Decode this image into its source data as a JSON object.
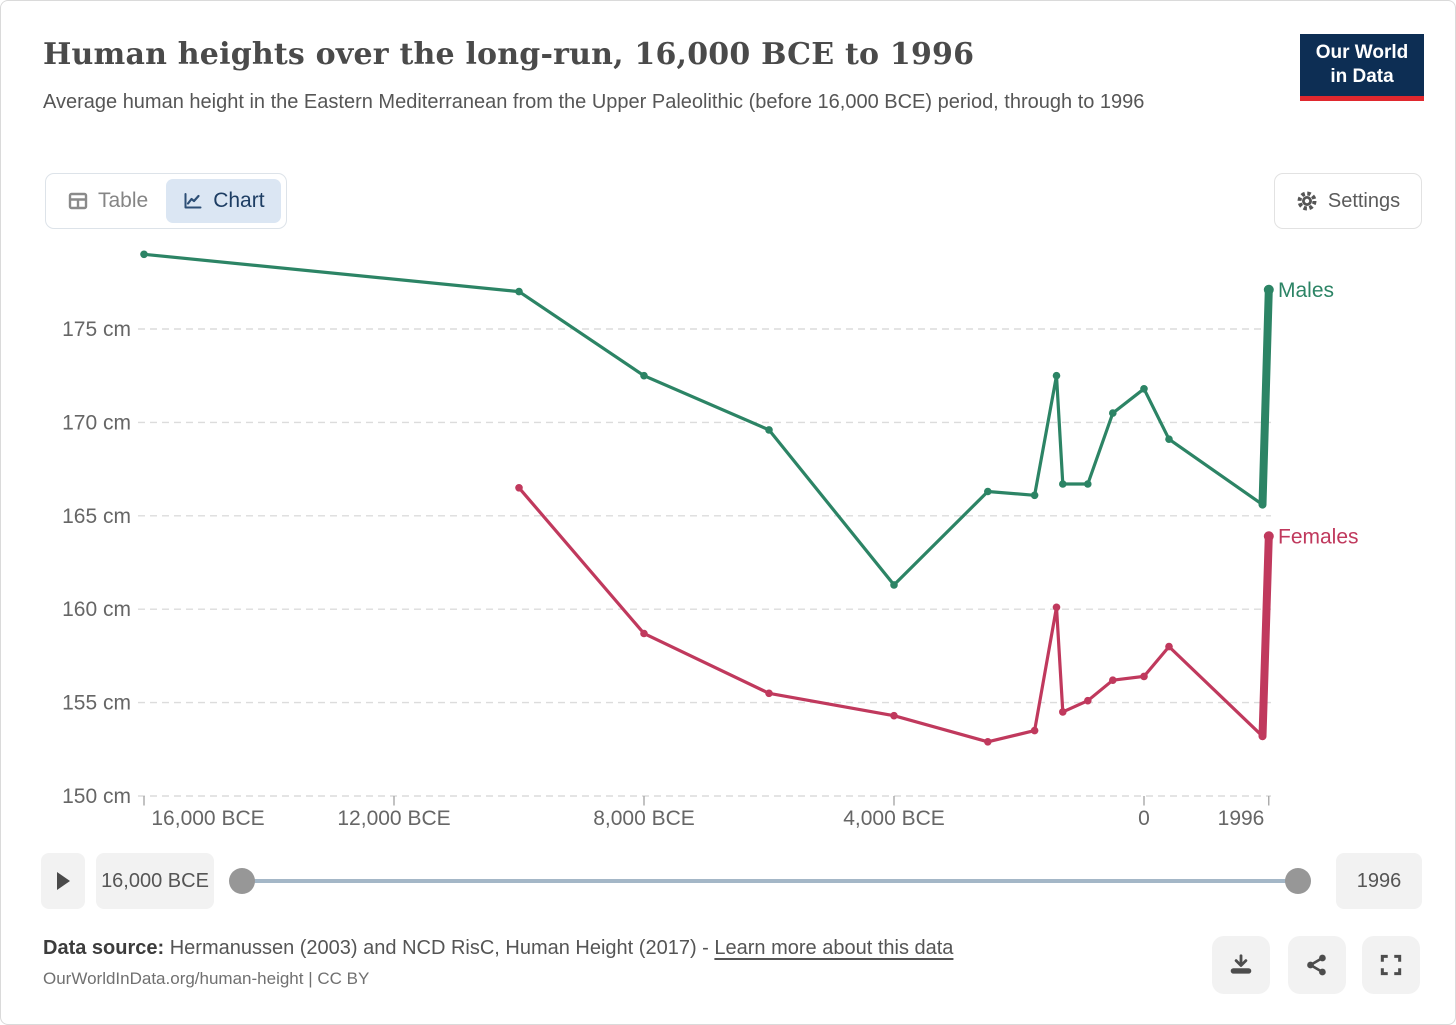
{
  "header": {
    "title": "Human heights over the long-run, 16,000 BCE to 1996",
    "subtitle": "Average human height in the Eastern Mediterranean from the Upper Paleolithic (before 16,000 BCE) period, through to 1996",
    "logo": {
      "line1": "Our World",
      "line2": "in Data"
    }
  },
  "tabs": [
    {
      "label": "Table",
      "active": false
    },
    {
      "label": "Chart",
      "active": true
    }
  ],
  "settings_button": {
    "label": "Settings"
  },
  "chart_data": {
    "type": "line",
    "title": "Human heights over the long-run, 16,000 BCE to 1996",
    "unit": "cm",
    "ylabel": "",
    "xlabel": "",
    "grid": true,
    "ylim": [
      150,
      180
    ],
    "yticks": [
      150,
      155,
      160,
      165,
      170,
      175
    ],
    "ytick_suffix": " cm",
    "xticks": [
      {
        "year": -16000,
        "label": "16,000 BCE"
      },
      {
        "year": -12000,
        "label": "12,000 BCE"
      },
      {
        "year": -8000,
        "label": "8,000 BCE"
      },
      {
        "year": -4000,
        "label": "4,000 BCE"
      },
      {
        "year": 0,
        "label": "0"
      },
      {
        "year": 1996,
        "label": "1996"
      }
    ],
    "legend_position": "right-of-line-end",
    "dense_segment_start_year": 1896,
    "series": [
      {
        "name": "Males",
        "color": "#2C8465",
        "points": [
          [
            -16000,
            179.0
          ],
          [
            -10000,
            177.0
          ],
          [
            -8000,
            172.5
          ],
          [
            -6000,
            169.6
          ],
          [
            -4000,
            161.3
          ],
          [
            -2500,
            166.3
          ],
          [
            -1750,
            166.1
          ],
          [
            -1400,
            172.5
          ],
          [
            -1300,
            166.7
          ],
          [
            -900,
            166.7
          ],
          [
            -500,
            170.5
          ],
          [
            0,
            171.8
          ],
          [
            400,
            169.1
          ],
          [
            1896,
            165.6
          ],
          [
            1996,
            177.1
          ]
        ]
      },
      {
        "name": "Females",
        "color": "#C0395D",
        "points": [
          [
            -10000,
            166.5
          ],
          [
            -8000,
            158.7
          ],
          [
            -6000,
            155.5
          ],
          [
            -4000,
            154.3
          ],
          [
            -2500,
            152.9
          ],
          [
            -1750,
            153.5
          ],
          [
            -1400,
            160.1
          ],
          [
            -1300,
            154.5
          ],
          [
            -900,
            155.1
          ],
          [
            -500,
            156.2
          ],
          [
            0,
            156.4
          ],
          [
            400,
            158.0
          ],
          [
            1896,
            153.2
          ],
          [
            1996,
            163.9
          ]
        ]
      }
    ]
  },
  "timeline": {
    "start_label": "16,000 BCE",
    "end_label": "1996"
  },
  "footer": {
    "source_prefix": "Data source:",
    "source_text": " Hermanussen (2003) and NCD RisC, Human Height (2017) - ",
    "source_link": "Learn more about this data",
    "citation": "OurWorldInData.org/human-height | CC BY"
  },
  "colors": {
    "males_line": "#2C8465",
    "females_line": "#C0395D",
    "active_tab_bg": "#dbe6f3",
    "active_tab_text": "#1d3d63",
    "logo_navy": "#0d2e54",
    "logo_red": "#e0282e",
    "axis_text": "#666666",
    "gridline": "#dcdcdc"
  }
}
